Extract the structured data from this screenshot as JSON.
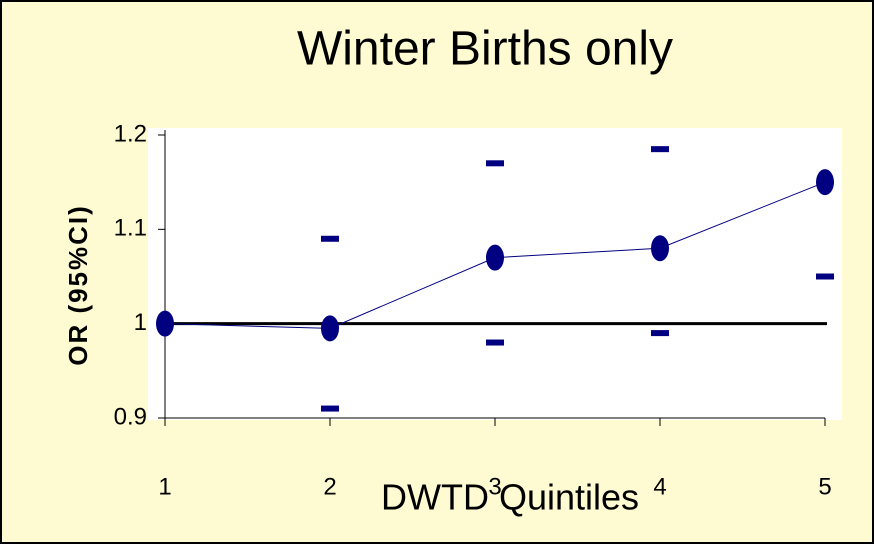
{
  "chart_data": {
    "type": "line",
    "title": "Winter Births only",
    "xlabel": "DWTD Quintiles",
    "ylabel": "OR (95%CI)",
    "x": [
      1,
      2,
      3,
      4,
      5
    ],
    "values": [
      1.0,
      0.995,
      1.07,
      1.08,
      1.15
    ],
    "lower": [
      null,
      0.91,
      0.98,
      0.99,
      1.05
    ],
    "upper": [
      null,
      1.09,
      1.17,
      1.185,
      null
    ],
    "color": "#000080",
    "reference_line": 1,
    "xlim": [
      1,
      5
    ],
    "xticks": [
      1,
      2,
      3,
      4,
      5
    ],
    "ylim": [
      0.9,
      1.2
    ],
    "yticks": [
      0.9,
      1,
      1.1,
      1.2
    ],
    "grid": false
  }
}
